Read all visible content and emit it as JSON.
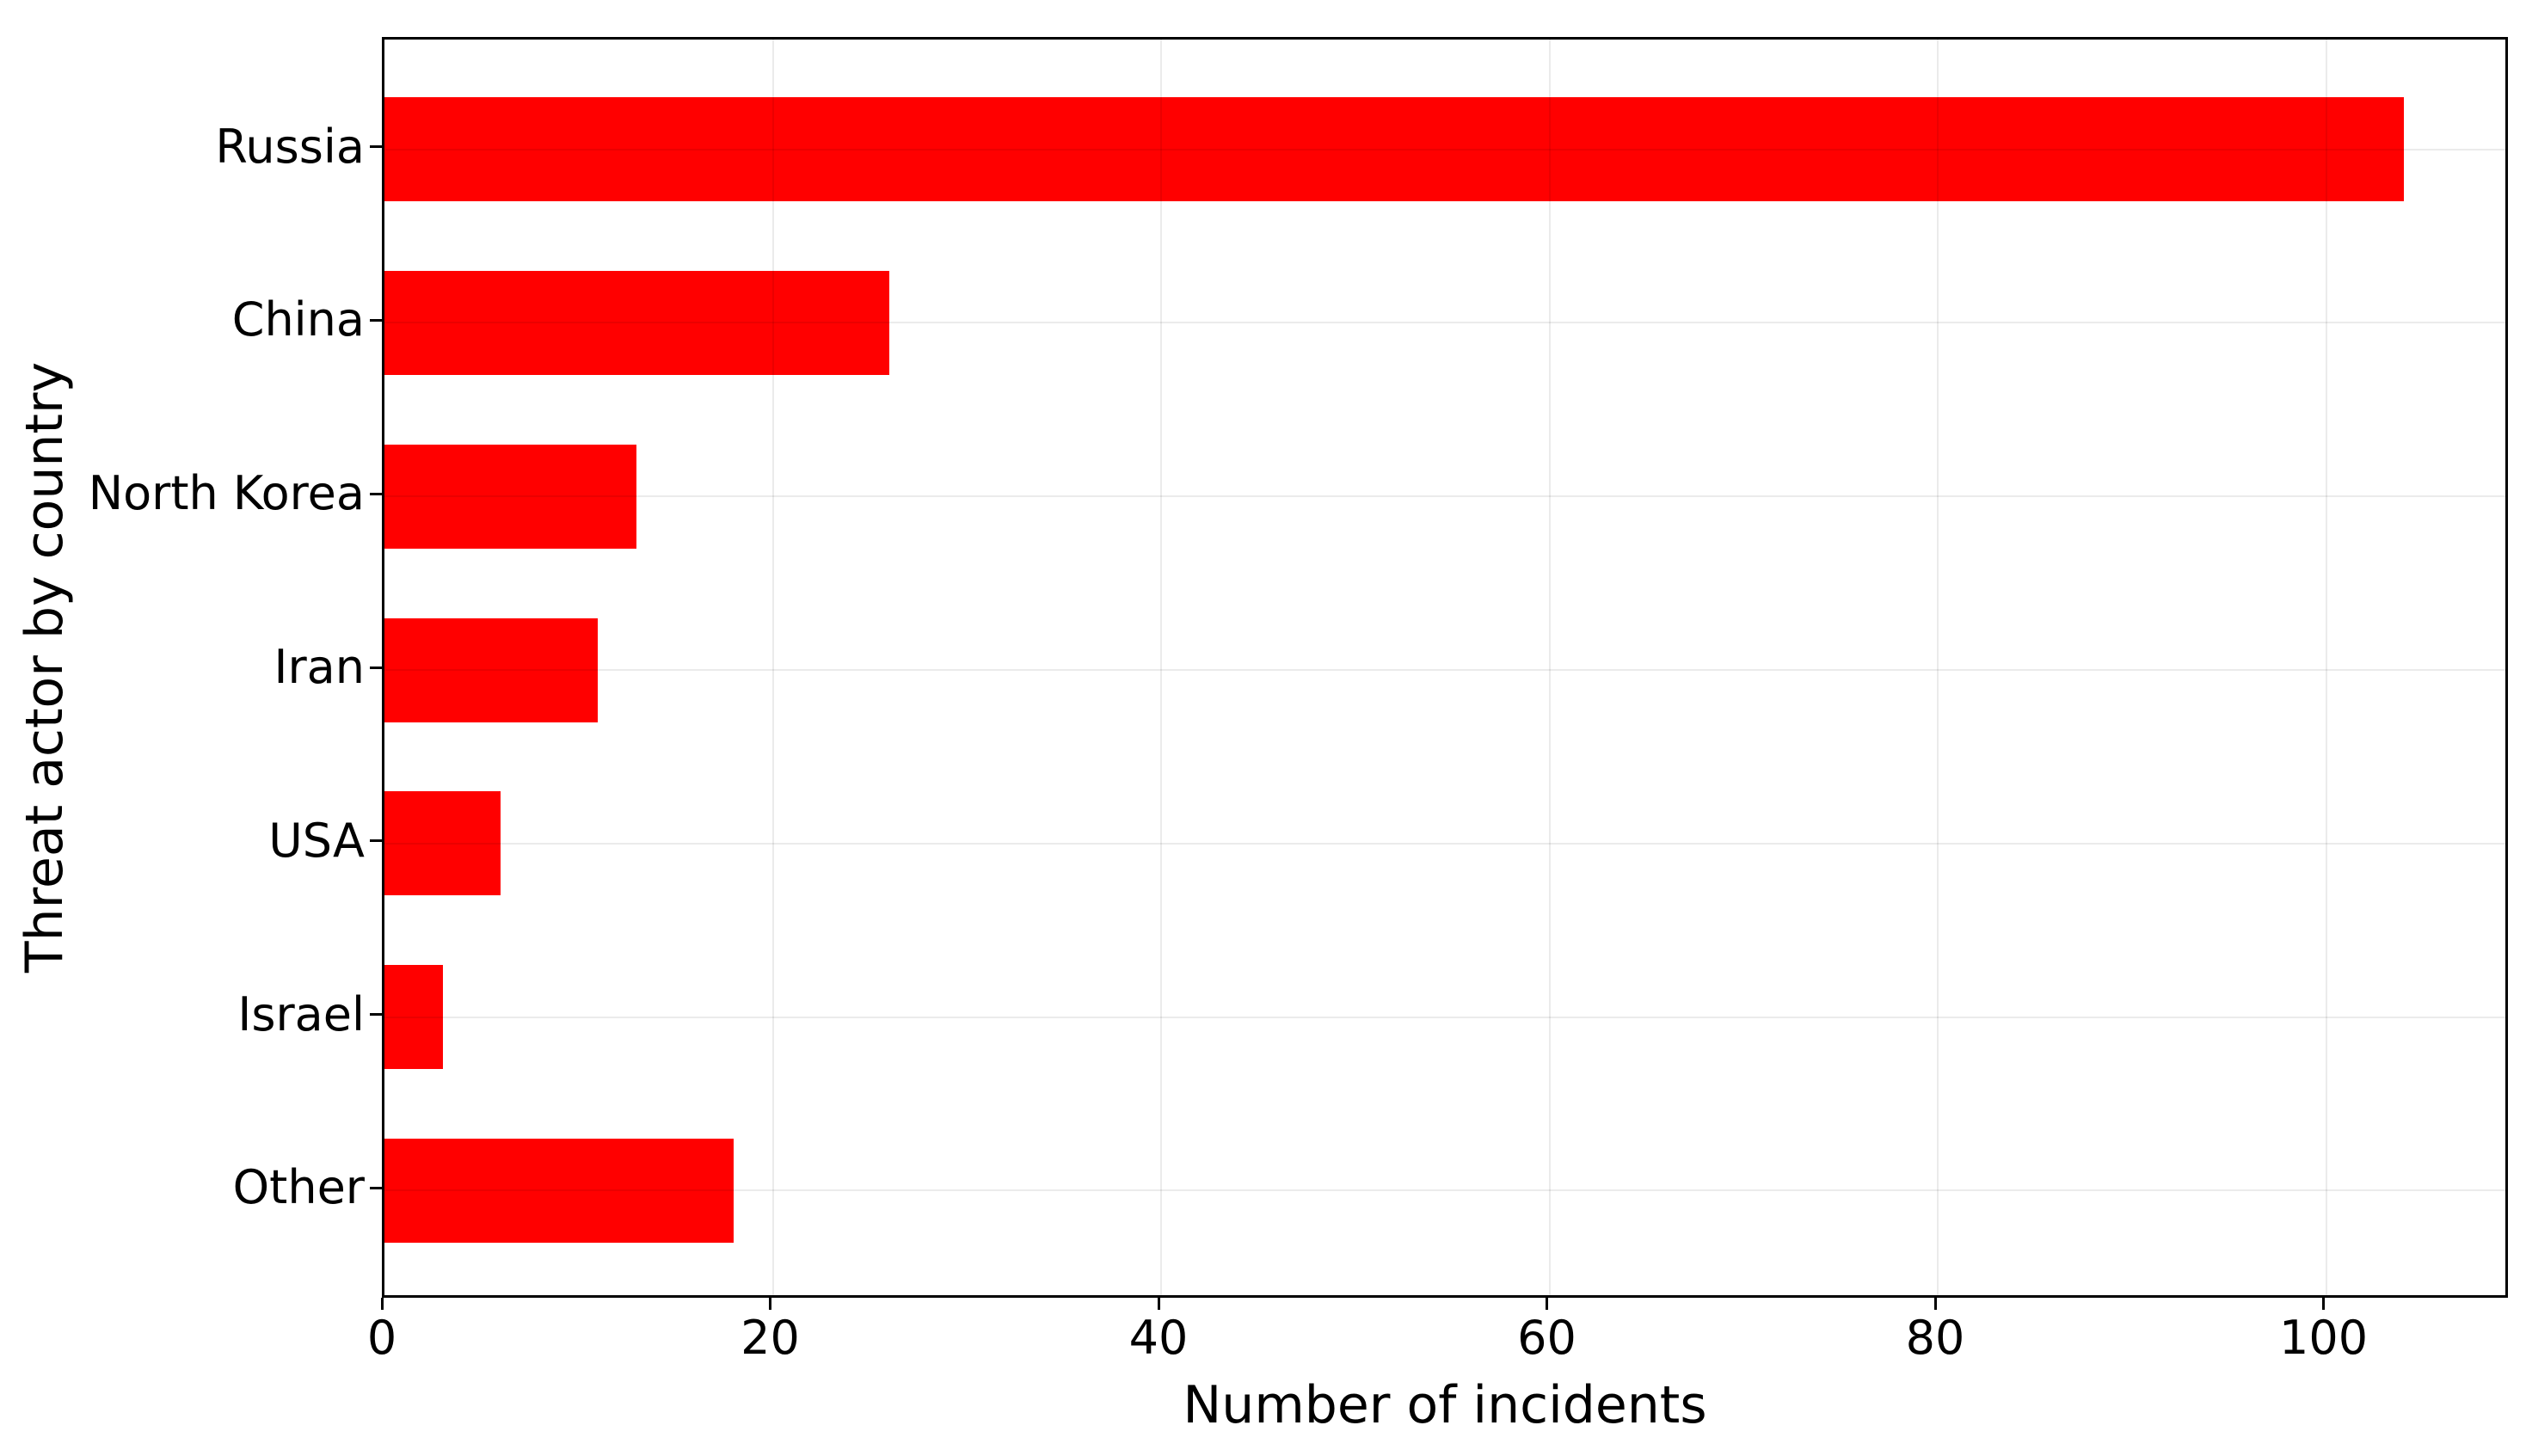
{
  "figure": {
    "background": "#ffffff",
    "title": ""
  },
  "chart_data": {
    "type": "bar",
    "orientation": "horizontal",
    "categories": [
      "Russia",
      "China",
      "North Korea",
      "Iran",
      "USA",
      "Israel",
      "Other"
    ],
    "values": [
      104,
      26,
      13,
      11,
      6,
      3,
      18
    ],
    "title": "",
    "xlabel": "Number of incidents",
    "ylabel": "Threat actor by country",
    "xticks": [
      0,
      20,
      40,
      60,
      80,
      100
    ],
    "xlim": [
      0,
      109.5
    ],
    "bar_color": "#ff0000",
    "spine_color": "#000000",
    "grid": "on",
    "grid_color": "rgba(0,0,0,0.08)",
    "legend": "none"
  }
}
